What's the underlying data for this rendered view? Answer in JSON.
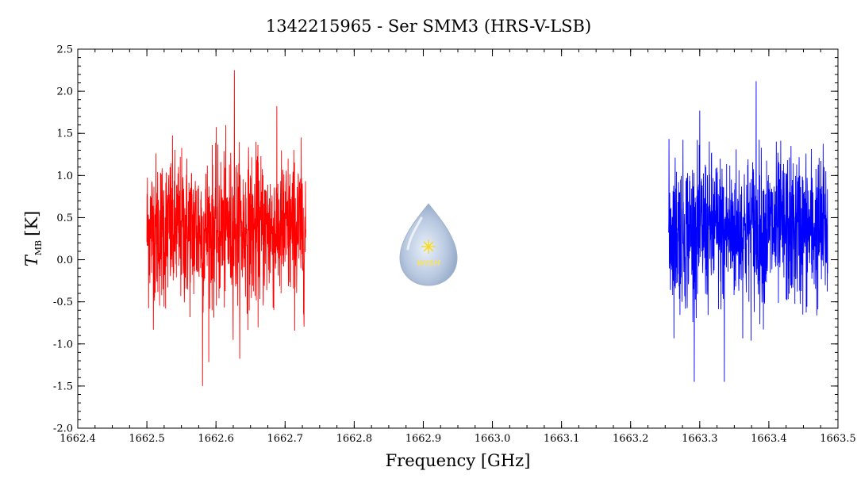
{
  "chart_data": {
    "type": "line",
    "title": "1342215965 - Ser SMM3 (HRS-V-LSB)",
    "xlabel": "Frequency [GHz]",
    "ylabel_main": "T",
    "ylabel_sub": "MB",
    "ylabel_unit": "[K]",
    "xlim": [
      1662.4,
      1663.5
    ],
    "ylim": [
      -2.0,
      2.5
    ],
    "xticks": [
      1662.4,
      1662.5,
      1662.6,
      1662.7,
      1662.8,
      1662.9,
      1663.0,
      1663.1,
      1663.2,
      1663.3,
      1663.4,
      1663.5
    ],
    "xtick_labels": [
      "1662.4",
      "1662.5",
      "1662.6",
      "1662.7",
      "1662.8",
      "1662.9",
      "1663.0",
      "1663.1",
      "1663.2",
      "1663.3",
      "1663.4",
      "1663.5"
    ],
    "yticks": [
      -2.0,
      -1.5,
      -1.0,
      -0.5,
      0.0,
      0.5,
      1.0,
      1.5,
      2.0,
      2.5
    ],
    "ytick_labels": [
      "-2.0",
      "-1.5",
      "-1.0",
      "-0.5",
      "0.0",
      "0.5",
      "1.0",
      "1.5",
      "2.0",
      "2.5"
    ],
    "grid": false,
    "series": [
      {
        "color": "#ff0000",
        "x_range": [
          1662.5,
          1662.73
        ],
        "y_mean": 0.35,
        "y_noise_sd": 0.45,
        "y_min": -1.5,
        "y_max": 2.25
      },
      {
        "color": "#0000ff",
        "x_range": [
          1663.255,
          1663.485
        ],
        "y_mean": 0.35,
        "y_noise_sd": 0.45,
        "y_min": -1.45,
        "y_max": 2.12
      }
    ]
  },
  "logo": {
    "text": "WISH"
  }
}
